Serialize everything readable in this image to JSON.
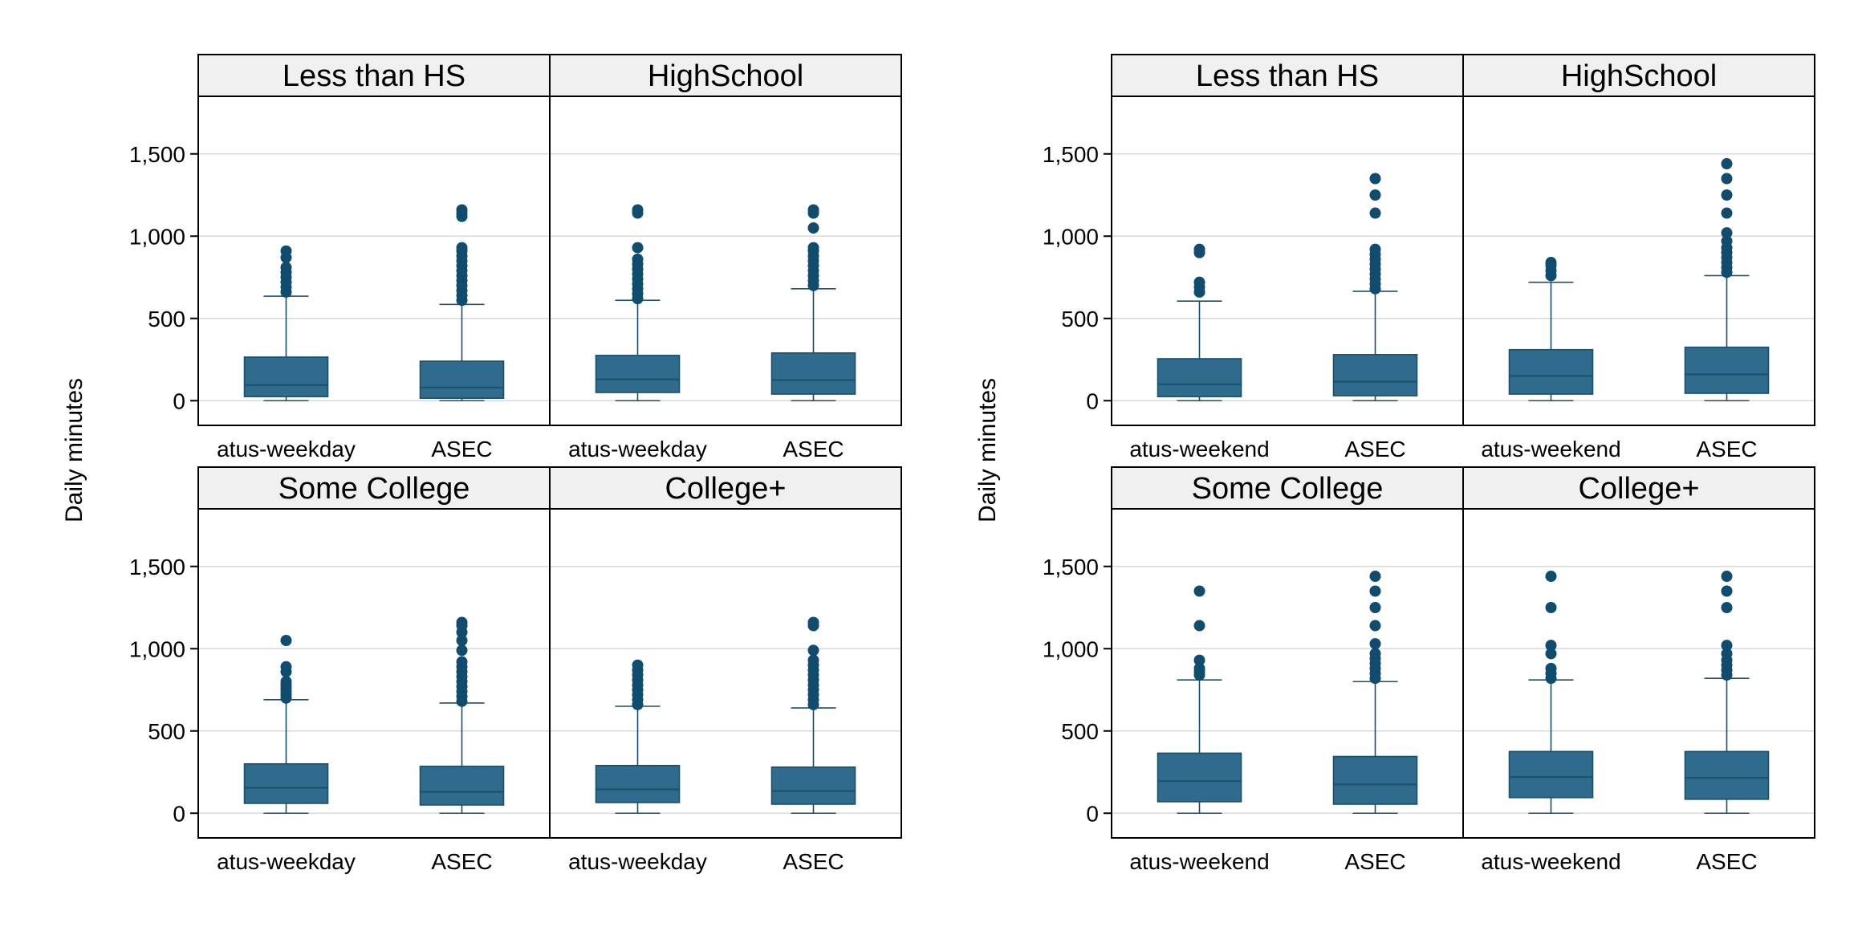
{
  "colors": {
    "box_fill": "#2e6b8c",
    "box_stroke": "#1a4e6e",
    "outlier": "#0f4c6e",
    "strip_bg": "#f0f0f0",
    "grid": "#d9d9d9",
    "frame": "#000000"
  },
  "chart_data": [
    {
      "type": "box",
      "ylabel": "Daily minutes",
      "ylim": [
        -150,
        1850
      ],
      "yticks": [
        0,
        500,
        1000,
        1500
      ],
      "ytick_labels": [
        "0",
        "500",
        "1,000",
        "1,500"
      ],
      "grid": true,
      "panels": [
        {
          "title": "Less than HS",
          "categories": [
            "atus-weekday",
            "ASEC"
          ],
          "boxes": [
            {
              "min": 0,
              "q1": 25,
              "median": 95,
              "q3": 265,
              "max": 635,
              "outliers": [
                660,
                690,
                720,
                750,
                780,
                810,
                870,
                910
              ]
            },
            {
              "min": 0,
              "q1": 15,
              "median": 80,
              "q3": 240,
              "max": 585,
              "outliers": [
                610,
                640,
                670,
                700,
                730,
                760,
                790,
                820,
                850,
                880,
                910,
                930,
                1120,
                1140,
                1160
              ]
            }
          ]
        },
        {
          "title": "HighSchool",
          "categories": [
            "atus-weekday",
            "ASEC"
          ],
          "boxes": [
            {
              "min": 0,
              "q1": 50,
              "median": 130,
              "q3": 275,
              "max": 610,
              "outliers": [
                620,
                650,
                680,
                710,
                740,
                770,
                800,
                830,
                860,
                930,
                1140,
                1160
              ]
            },
            {
              "min": 0,
              "q1": 40,
              "median": 125,
              "q3": 290,
              "max": 680,
              "outliers": [
                700,
                730,
                760,
                790,
                820,
                850,
                880,
                910,
                930,
                1050,
                1140,
                1160
              ]
            }
          ]
        },
        {
          "title": "Some College",
          "categories": [
            "atus-weekday",
            "ASEC"
          ],
          "boxes": [
            {
              "min": 0,
              "q1": 60,
              "median": 155,
              "q3": 300,
              "max": 690,
              "outliers": [
                700,
                720,
                740,
                760,
                780,
                800,
                860,
                890,
                1050
              ]
            },
            {
              "min": 0,
              "q1": 50,
              "median": 130,
              "q3": 285,
              "max": 670,
              "outliers": [
                680,
                710,
                740,
                770,
                800,
                830,
                860,
                890,
                920,
                990,
                1050,
                1100,
                1140,
                1160
              ]
            }
          ]
        },
        {
          "title": "College+",
          "categories": [
            "atus-weekday",
            "ASEC"
          ],
          "boxes": [
            {
              "min": 0,
              "q1": 65,
              "median": 145,
              "q3": 290,
              "max": 650,
              "outliers": [
                660,
                690,
                720,
                750,
                780,
                810,
                840,
                870,
                900
              ]
            },
            {
              "min": 0,
              "q1": 55,
              "median": 135,
              "q3": 280,
              "max": 640,
              "outliers": [
                660,
                690,
                720,
                750,
                780,
                810,
                840,
                870,
                900,
                930,
                990,
                1140,
                1160
              ]
            }
          ]
        }
      ]
    },
    {
      "type": "box",
      "ylabel": "Daily minutes",
      "ylim": [
        -150,
        1850
      ],
      "yticks": [
        0,
        500,
        1000,
        1500
      ],
      "ytick_labels": [
        "0",
        "500",
        "1,000",
        "1,500"
      ],
      "grid": true,
      "panels": [
        {
          "title": "Less than HS",
          "categories": [
            "atus-weekend",
            "ASEC"
          ],
          "boxes": [
            {
              "min": 0,
              "q1": 25,
              "median": 100,
              "q3": 255,
              "max": 605,
              "outliers": [
                660,
                690,
                720,
                900,
                920
              ]
            },
            {
              "min": 0,
              "q1": 30,
              "median": 115,
              "q3": 280,
              "max": 665,
              "outliers": [
                680,
                710,
                740,
                770,
                800,
                830,
                860,
                890,
                920,
                1140,
                1250,
                1350
              ]
            }
          ]
        },
        {
          "title": "HighSchool",
          "categories": [
            "atus-weekend",
            "ASEC"
          ],
          "boxes": [
            {
              "min": 0,
              "q1": 40,
              "median": 150,
              "q3": 310,
              "max": 720,
              "outliers": [
                760,
                790,
                820,
                840
              ]
            },
            {
              "min": 0,
              "q1": 45,
              "median": 160,
              "q3": 325,
              "max": 760,
              "outliers": [
                780,
                810,
                840,
                870,
                900,
                930,
                970,
                1020,
                1140,
                1250,
                1350,
                1440
              ]
            }
          ]
        },
        {
          "title": "Some College",
          "categories": [
            "atus-weekend",
            "ASEC"
          ],
          "boxes": [
            {
              "min": 0,
              "q1": 70,
              "median": 195,
              "q3": 365,
              "max": 810,
              "outliers": [
                840,
                860,
                880,
                930,
                1140,
                1350
              ]
            },
            {
              "min": 0,
              "q1": 55,
              "median": 175,
              "q3": 345,
              "max": 800,
              "outliers": [
                820,
                850,
                880,
                910,
                940,
                970,
                1030,
                1140,
                1250,
                1350,
                1440
              ]
            }
          ]
        },
        {
          "title": "College+",
          "categories": [
            "atus-weekend",
            "ASEC"
          ],
          "boxes": [
            {
              "min": 0,
              "q1": 95,
              "median": 220,
              "q3": 375,
              "max": 810,
              "outliers": [
                820,
                850,
                880,
                970,
                1020,
                1250,
                1440
              ]
            },
            {
              "min": 0,
              "q1": 85,
              "median": 215,
              "q3": 375,
              "max": 820,
              "outliers": [
                840,
                870,
                900,
                930,
                970,
                1020,
                1250,
                1350,
                1440
              ]
            }
          ]
        }
      ]
    }
  ]
}
